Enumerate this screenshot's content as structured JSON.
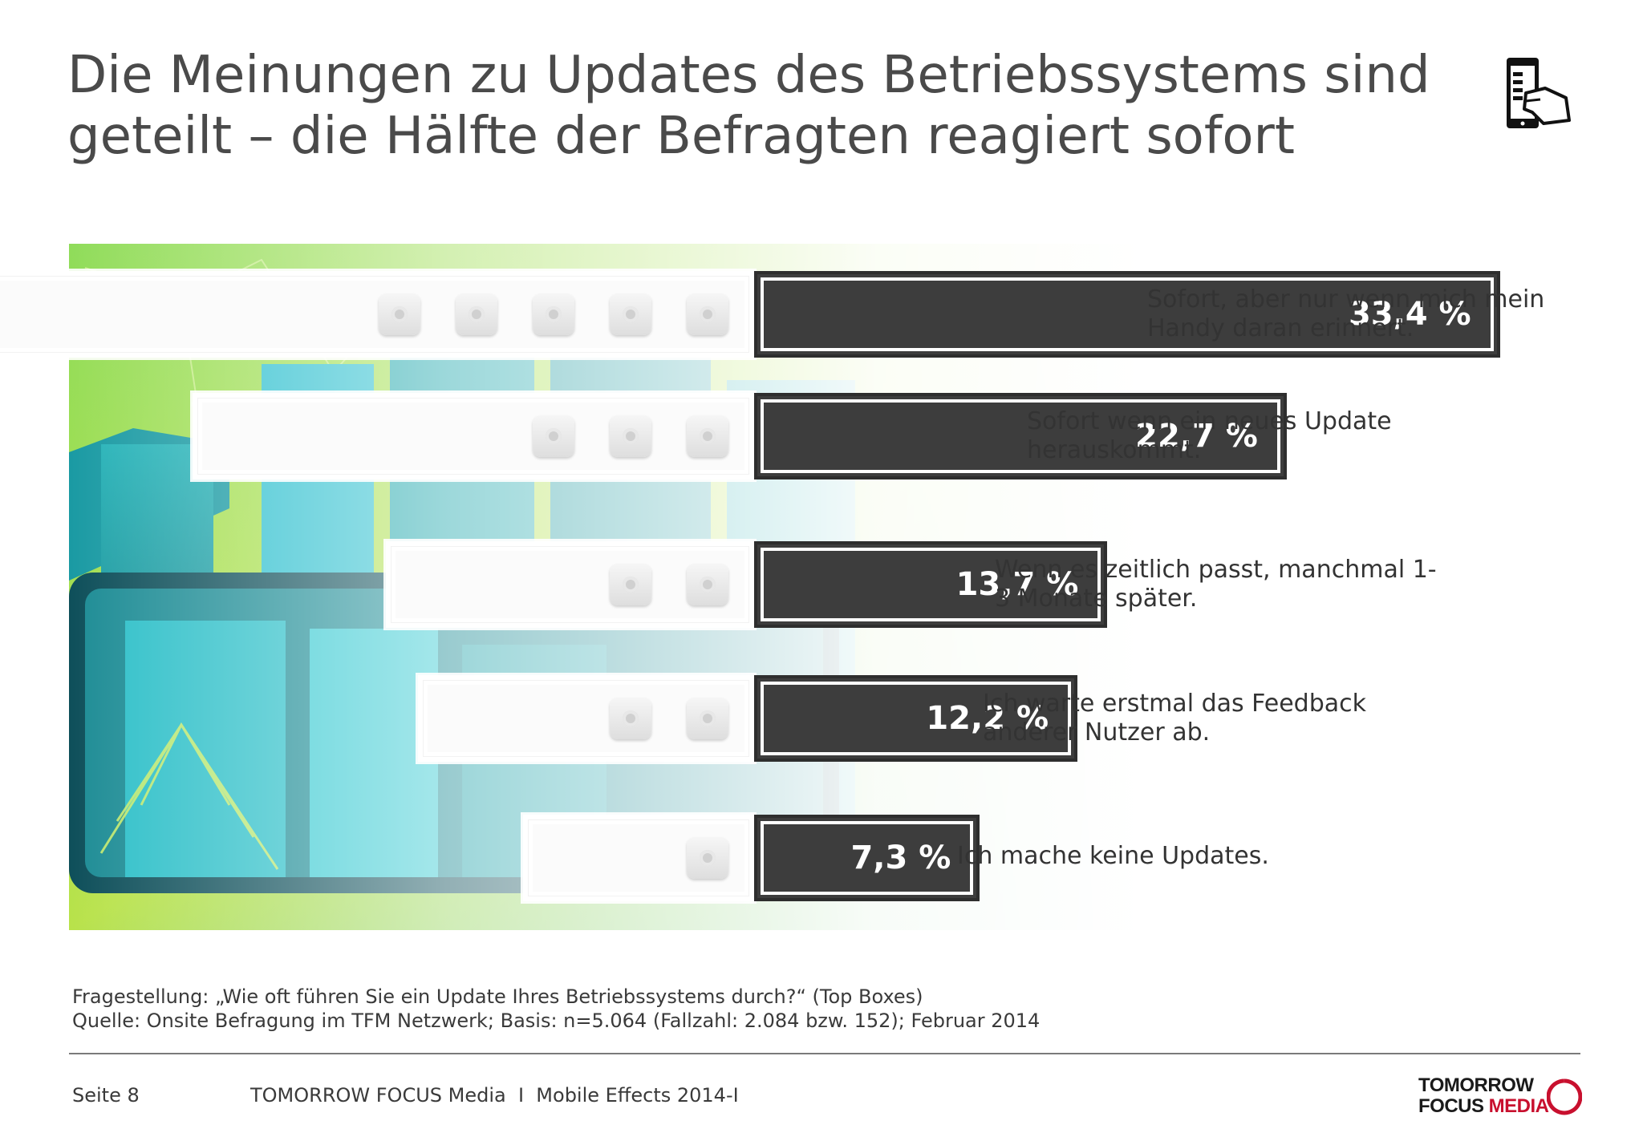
{
  "title": "Die Meinungen zu Updates des Betriebssystems sind geteilt – die Hälfte der Befragten reagiert sofort",
  "header_icon": "phone-in-hand-icon",
  "chart_data": {
    "type": "bar",
    "orientation": "horizontal",
    "categories": [
      "Sofort, aber nur wenn mich mein Handy daran erinnert.",
      "Sofort wenn ein neues Update herauskommt.",
      "Wenn es zeitlich passt, manchmal 1-3 Monate später.",
      "Ich warte erstmal das Feedback anderer Nutzer ab.",
      "Ich mache keine Updates."
    ],
    "values": [
      33.4,
      22.7,
      13.7,
      12.2,
      7.3
    ],
    "value_labels": [
      "33,4 %",
      "22,7 %",
      "13,7 %",
      "12,2 %",
      "7,3 %"
    ],
    "unit": "%",
    "title": "",
    "xlabel": "",
    "ylabel": "",
    "legend": "none",
    "grid": false,
    "colors": {
      "bar_value": "#3d3d3d",
      "bar_frame": "#ffffff",
      "value_text": "#ffffff"
    }
  },
  "footnotes": {
    "question": "Fragestellung: „Wie oft führen Sie ein Update Ihres Betriebssystems durch?“ (Top Boxes)",
    "source": "Quelle: Onsite Befragung im TFM Netzwerk; Basis: n=5.064 (Fallzahl: 2.084 bzw. 152); Februar 2014"
  },
  "footer": {
    "page": "Seite 8",
    "center": "TOMORROW FOCUS Media  I  Mobile Effects 2014-I",
    "logo_line1": "TOMORROW",
    "logo_line2a": "FOCUS ",
    "logo_line2b": "MEDIA",
    "logo_accent": "#c8102e"
  }
}
